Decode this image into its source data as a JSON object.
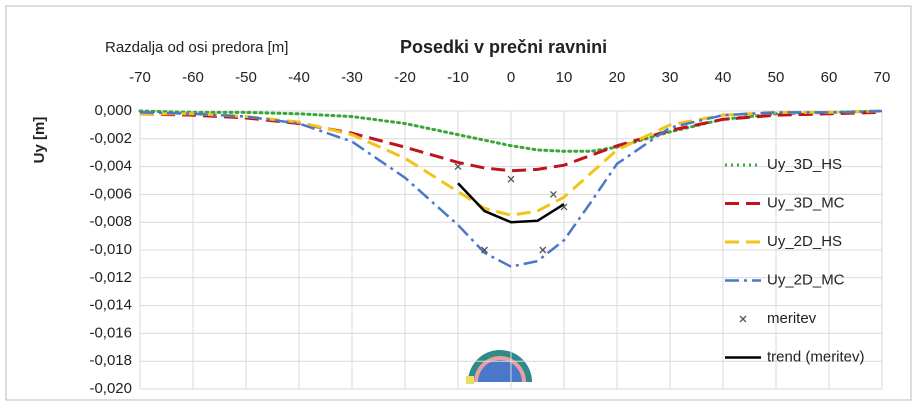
{
  "chart_data": {
    "type": "line",
    "title": "Posedki v  prečni ravnini",
    "x_label": "Razdalja od osi predora [m]",
    "y_label": "Uy [m]",
    "xlim": [
      -70,
      70
    ],
    "xticks": [
      -70,
      -60,
      -50,
      -40,
      -30,
      -20,
      -10,
      0,
      10,
      20,
      30,
      40,
      50,
      60,
      70
    ],
    "ylim": [
      -0.02,
      0
    ],
    "yticks": [
      {
        "value": 0,
        "label": "0,000"
      },
      {
        "value": -0.002,
        "label": "-0,002"
      },
      {
        "value": -0.004,
        "label": "-0,004"
      },
      {
        "value": -0.006,
        "label": "-0,006"
      },
      {
        "value": -0.008,
        "label": "-0,008"
      },
      {
        "value": -0.01,
        "label": "-0,010"
      },
      {
        "value": -0.012,
        "label": "-0,012"
      },
      {
        "value": -0.014,
        "label": "-0,014"
      },
      {
        "value": -0.016,
        "label": "-0,016"
      },
      {
        "value": -0.018,
        "label": "-0,018"
      },
      {
        "value": -0.02,
        "label": "-0,020"
      }
    ],
    "grid": true,
    "legend": "right",
    "series": [
      {
        "name": "Uy_3D_HS",
        "color": "#3aa63a",
        "style": "dotted",
        "x": [
          -70,
          -60,
          -50,
          -40,
          -30,
          -20,
          -10,
          -5,
          0,
          5,
          10,
          15,
          20,
          30,
          40,
          50,
          60,
          70
        ],
        "values": [
          0,
          -0.0001,
          -0.0001,
          -0.0002,
          -0.0004,
          -0.0009,
          -0.0017,
          -0.0021,
          -0.0025,
          -0.0028,
          -0.0029,
          -0.0029,
          -0.0026,
          -0.0015,
          -0.0006,
          -0.0002,
          -0.0001,
          0
        ]
      },
      {
        "name": "Uy_3D_MC",
        "color": "#c0141c",
        "style": "dashed",
        "x": [
          -70,
          -60,
          -50,
          -40,
          -30,
          -20,
          -10,
          -5,
          0,
          5,
          10,
          15,
          20,
          30,
          40,
          50,
          60,
          70
        ],
        "values": [
          -0.0002,
          -0.0003,
          -0.0005,
          -0.0009,
          -0.0016,
          -0.0026,
          -0.0037,
          -0.0041,
          -0.0043,
          -0.0042,
          -0.0039,
          -0.0032,
          -0.0025,
          -0.0014,
          -0.0006,
          -0.0003,
          -0.0002,
          -0.0001
        ]
      },
      {
        "name": "Uy_2D_HS",
        "color": "#f2c318",
        "style": "dashed",
        "x": [
          -70,
          -60,
          -50,
          -40,
          -30,
          -20,
          -10,
          -5,
          0,
          5,
          10,
          15,
          20,
          30,
          40,
          50,
          60,
          70
        ],
        "values": [
          -0.0002,
          -0.0002,
          -0.0004,
          -0.0008,
          -0.0017,
          -0.0034,
          -0.0058,
          -0.007,
          -0.0075,
          -0.0072,
          -0.0062,
          -0.0045,
          -0.0028,
          -0.001,
          -0.0003,
          -0.0001,
          -0.0001,
          0
        ]
      },
      {
        "name": "Uy_2D_MC",
        "color": "#4a78c8",
        "style": "dashdot",
        "x": [
          -70,
          -60,
          -50,
          -40,
          -30,
          -20,
          -10,
          -5,
          0,
          5,
          10,
          15,
          20,
          30,
          40,
          50,
          60,
          70
        ],
        "values": [
          -0.0001,
          -0.0002,
          -0.0004,
          -0.0009,
          -0.0022,
          -0.0048,
          -0.0082,
          -0.0102,
          -0.0112,
          -0.0108,
          -0.0093,
          -0.0066,
          -0.0038,
          -0.0012,
          -0.0003,
          -0.0001,
          -0.0001,
          0
        ]
      },
      {
        "name": "meritev",
        "color": "#555555",
        "style": "marker",
        "x": [
          -10,
          0,
          8,
          10,
          -5,
          6
        ],
        "values": [
          -0.004,
          -0.0049,
          -0.006,
          -0.0069,
          -0.01,
          -0.01
        ]
      },
      {
        "name": "trend (meritev)",
        "color": "#000000",
        "style": "solid",
        "x": [
          -10,
          -5,
          0,
          5,
          10
        ],
        "values": [
          -0.0052,
          -0.0072,
          -0.008,
          -0.0079,
          -0.0067
        ]
      }
    ]
  }
}
